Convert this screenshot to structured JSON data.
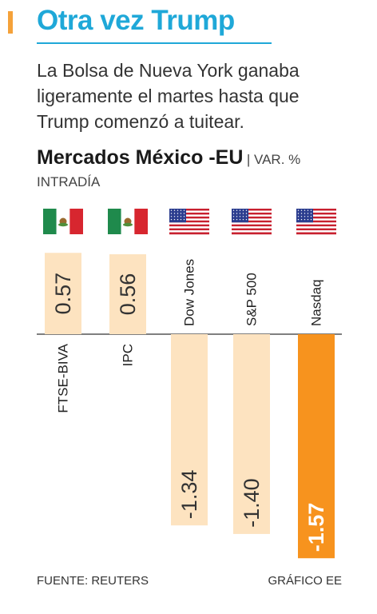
{
  "title": "Otra vez Trump",
  "subtitle": "La Bolsa de Nueva York ganaba ligeramente el martes hasta que Trump comenzó a tuitear.",
  "chart_heading": "Mercados México -EU",
  "chart_heading_unit_line1": "| VAR. %",
  "chart_heading_unit_line2": "INTRADÍA",
  "source": "FUENTE: REUTERS",
  "credit": "GRÁFICO EE",
  "colors": {
    "title": "#1fa8d8",
    "accent": "#f5a23a",
    "bar_light": "#fde3c0",
    "bar_highlight": "#f7931e"
  },
  "chart_data": {
    "type": "bar",
    "categories": [
      "FTSE-BIVA",
      "IPC",
      "Dow Jones",
      "S&P 500",
      "Nasdaq"
    ],
    "values": [
      0.57,
      0.56,
      -1.34,
      -1.4,
      -1.57
    ],
    "value_labels": [
      "0.57",
      "0.56",
      "-1.34",
      "-1.40",
      "-1.57"
    ],
    "flags": [
      "mexico-flag",
      "mexico-flag",
      "usa-flag",
      "usa-flag",
      "usa-flag"
    ],
    "highlight": "Nasdaq",
    "title": "Mercados México -EU",
    "xlabel": "",
    "ylabel": "VAR. % INTRADÍA",
    "ylim": [
      -1.57,
      0.57
    ],
    "grid": false
  }
}
